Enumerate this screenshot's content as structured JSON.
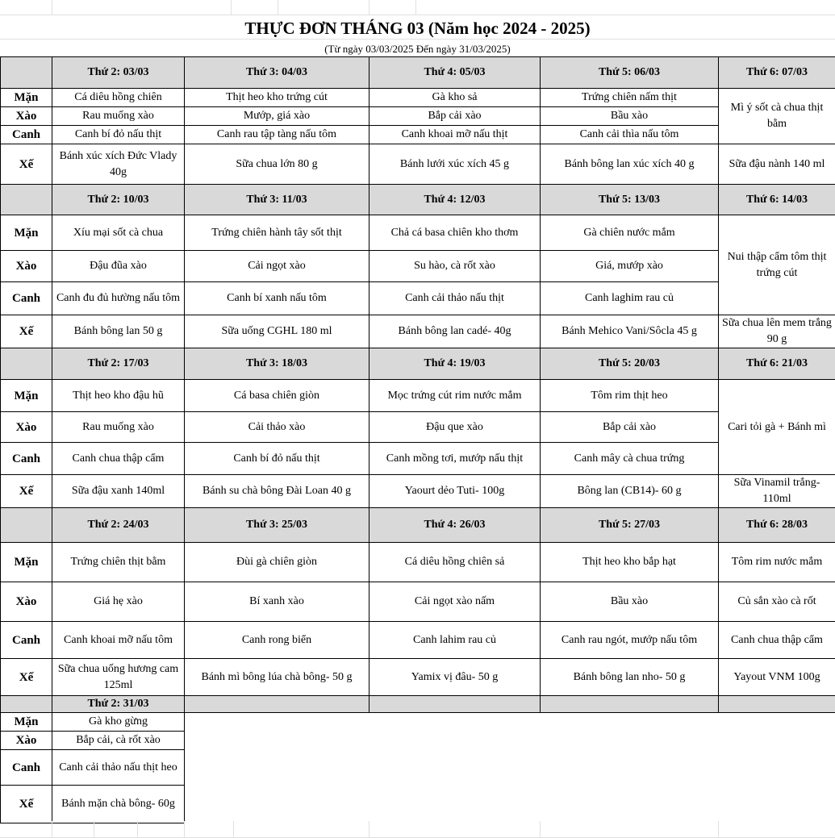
{
  "title": "THỰC ĐƠN THÁNG 03 (Năm học 2024 - 2025)",
  "subtitle": "(Từ ngày 03/03/2025  Đến ngày 31/03/2025)",
  "row_labels": [
    "Mặn",
    "Xào",
    "Canh",
    "Xế"
  ],
  "colors": {
    "header_bg": "#d9d9d9",
    "border": "#000000"
  },
  "weeks": [
    {
      "days": [
        {
          "header": "Thứ 2: 03/03",
          "man": "Cá diêu hồng chiên",
          "xao": "Rau muống xào",
          "canh": "Canh bí đỏ nấu thịt",
          "xe": "Bánh xúc xích Đức Vlady 40g"
        },
        {
          "header": "Thứ 3: 04/03",
          "man": "Thịt heo kho trứng cút",
          "xao": "Mướp, giá xào",
          "canh": "Canh rau tập tàng nấu tôm",
          "xe": "Sữa chua lớn 80 g"
        },
        {
          "header": "Thứ 4: 05/03",
          "man": "Gà kho sả",
          "xao": "Bắp cải xào",
          "canh": "Canh khoai mỡ nấu thịt",
          "xe": "Bánh lưới xúc xích 45 g"
        },
        {
          "header": "Thứ 5: 06/03",
          "man": "Trứng chiên nấm thịt",
          "xao": "Bầu xào",
          "canh": "Canh cải thìa nấu tôm",
          "xe": "Bánh bông lan xúc xích 40 g"
        },
        {
          "header": "Thứ 6: 07/03",
          "main": "Mì ý sốt cà chua thịt bằm",
          "xe": "Sữa đậu nành 140 ml"
        }
      ]
    },
    {
      "days": [
        {
          "header": "Thứ 2: 10/03",
          "man": "Xíu mại sốt cà chua",
          "xao": "Đậu đũa xào",
          "canh": "Canh đu đủ hường nấu tôm",
          "xe": "Bánh bông lan 50 g"
        },
        {
          "header": "Thứ 3: 11/03",
          "man": "Trứng chiên hành tây sốt thịt",
          "xao": "Cải ngọt xào",
          "canh": "Canh bí xanh nấu tôm",
          "xe": "Sữa uống CGHL 180 ml"
        },
        {
          "header": "Thứ 4: 12/03",
          "man": "Chả cá basa chiên kho thơm",
          "xao": "Su hào, cà rốt xào",
          "canh": "Canh cải thảo nấu thịt",
          "xe": "Bánh bông lan cadé- 40g"
        },
        {
          "header": "Thứ 5: 13/03",
          "man": "Gà chiên nước mắm",
          "xao": "Giá, mướp xào",
          "canh": "Canh laghim rau củ",
          "xe": "Bánh Mehico Vani/Sôcla 45 g"
        },
        {
          "header": "Thứ 6: 14/03",
          "main": "Nui thập cẩm tôm thịt trứng cút",
          "xe": "Sữa chua lên mem trắng 90 g"
        }
      ]
    },
    {
      "days": [
        {
          "header": "Thứ 2: 17/03",
          "man": "Thịt heo kho đậu hũ",
          "xao": "Rau muống xào",
          "canh": "Canh chua thập cẩm",
          "xe": "Sữa đậu xanh 140ml"
        },
        {
          "header": "Thứ 3: 18/03",
          "man": "Cá basa chiên giòn",
          "xao": "Cải thảo xào",
          "canh": "Canh bí đỏ nấu thịt",
          "xe": "Bánh su chà bông Đài Loan 40 g"
        },
        {
          "header": "Thứ 4: 19/03",
          "man": "Mọc trứng cút rim nước mắm",
          "xao": "Đậu que xào",
          "canh": "Canh mồng tơi, mướp nấu thịt",
          "xe": "Yaourt dẻo Tuti- 100g"
        },
        {
          "header": "Thứ 5: 20/03",
          "man": "Tôm rim thịt heo",
          "xao": "Bắp cải xào",
          "canh": "Canh mây cà chua trứng",
          "xe": "Bông lan (CB14)- 60 g"
        },
        {
          "header": "Thứ 6: 21/03",
          "main": "Cari tỏi gà + Bánh mì",
          "xe": "Sữa Vinamil trắng- 110ml"
        }
      ]
    },
    {
      "days": [
        {
          "header": "Thứ 2: 24/03",
          "man": "Trứng chiên thịt bằm",
          "xao": "Giá hẹ xào",
          "canh": "Canh khoai mỡ nấu tôm",
          "xe": "Sữa chua uống hương cam 125ml"
        },
        {
          "header": "Thứ 3: 25/03",
          "man": "Đùi gà chiên giòn",
          "xao": "Bí xanh xào",
          "canh": "Canh rong biển",
          "xe": "Bánh mì bông lúa chà bông- 50 g"
        },
        {
          "header": "Thứ 4: 26/03",
          "man": "Cá diêu hồng chiên sả",
          "xao": "Cải ngọt xào nấm",
          "canh": "Canh lahim rau củ",
          "xe": "Yamix vị đâu- 50 g"
        },
        {
          "header": "Thứ 5: 27/03",
          "man": "Thịt heo kho bắp hạt",
          "xao": "Bầu xào",
          "canh": "Canh rau ngót, mướp nấu tôm",
          "xe": "Bánh bông lan nho- 50 g"
        },
        {
          "header": "Thứ 6: 28/03",
          "man": "Tôm rim nước mắm",
          "xao": "Củ sắn xào cà rốt",
          "canh": "Canh chua thập cẩm",
          "xe": "Yayout VNM 100g"
        }
      ]
    },
    {
      "days": [
        {
          "header": "Thứ 2: 31/03",
          "man": "Gà kho gừng",
          "xao": "Bắp cải, cà rốt xào",
          "canh": "Canh cải thảo nấu thịt heo",
          "xe": "Bánh mặn chà bông- 60g"
        }
      ]
    }
  ]
}
